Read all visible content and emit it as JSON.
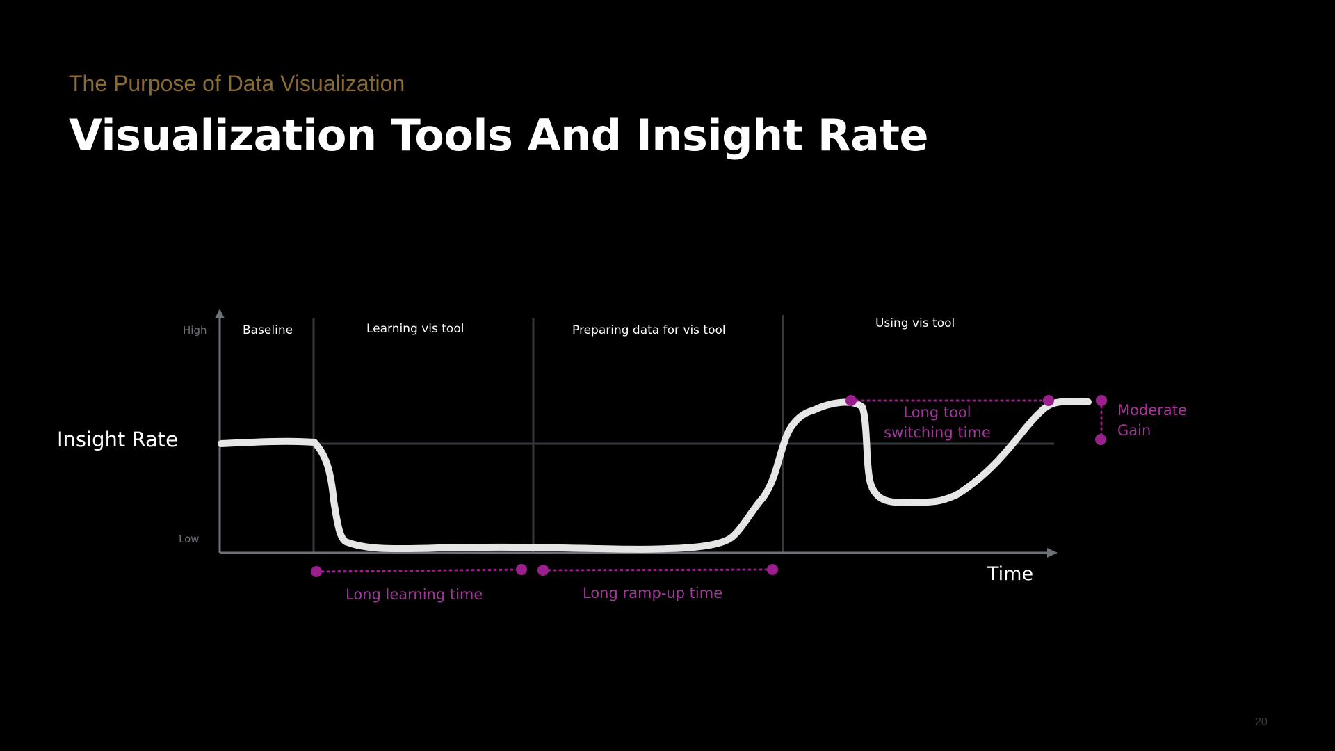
{
  "header": {
    "subtitle": "The Purpose of Data Visualization",
    "title": "Visualization Tools And Insight Rate"
  },
  "axes": {
    "y_title": "Insight Rate",
    "y_high": "High",
    "y_low": "Low",
    "x_title": "Time"
  },
  "phases": [
    {
      "label": "Baseline"
    },
    {
      "label": "Learning vis tool"
    },
    {
      "label": "Preparing data for vis tool"
    },
    {
      "label": "Using vis tool"
    }
  ],
  "annotations": {
    "learning_time": "Long learning time",
    "rampup_time": "Long ramp-up time",
    "switching_line1": "Long tool",
    "switching_line2": "switching time",
    "gain_line1": "Moderate",
    "gain_line2": "Gain"
  },
  "page_number": "20",
  "colors": {
    "background": "#000000",
    "subtitle": "#8a6a33",
    "title": "#ffffff",
    "curve": "#e6e6e6",
    "axis": "#6e7278",
    "divider": "#34373c",
    "annotation": "#9b1f8c",
    "annotation_text": "#a2379a"
  }
}
